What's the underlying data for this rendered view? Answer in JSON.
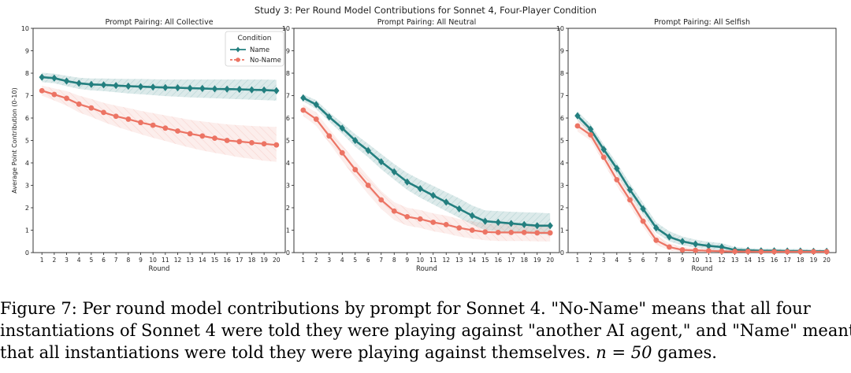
{
  "figure_title": "Study 3: Per Round Model Contributions for Sonnet 4, Four-Player Condition",
  "legend": {
    "title": "Condition",
    "entries": [
      {
        "label": "Name",
        "color": "#237f7f",
        "marker": "diamond"
      },
      {
        "label": "No-Name",
        "color": "#ec7464",
        "marker": "circle",
        "dashed": true
      }
    ]
  },
  "chart_data": [
    {
      "type": "line",
      "title": "Prompt Pairing: All Collective",
      "xlabel": "Round",
      "ylabel": "Average Point Contribution (0-10)",
      "x": [
        1,
        2,
        3,
        4,
        5,
        6,
        7,
        8,
        9,
        10,
        11,
        12,
        13,
        14,
        15,
        16,
        17,
        18,
        19,
        20
      ],
      "xticks": [
        "1",
        "2",
        "3",
        "4",
        "5",
        "6",
        "7",
        "8",
        "9",
        "10",
        "11",
        "12",
        "13",
        "14",
        "15",
        "16",
        "17",
        "18",
        "19",
        "20"
      ],
      "ylim": [
        0,
        10
      ],
      "yticks": [
        "0",
        "1",
        "2",
        "3",
        "4",
        "5",
        "6",
        "7",
        "8",
        "9",
        "10"
      ],
      "legend_position": "top-right",
      "series": [
        {
          "name": "Name",
          "values": [
            7.82,
            7.78,
            7.65,
            7.55,
            7.5,
            7.48,
            7.45,
            7.42,
            7.4,
            7.38,
            7.36,
            7.35,
            7.33,
            7.32,
            7.3,
            7.29,
            7.28,
            7.26,
            7.25,
            7.22
          ],
          "ci_low": [
            7.6,
            7.55,
            7.42,
            7.3,
            7.24,
            7.2,
            7.15,
            7.1,
            7.06,
            7.02,
            6.98,
            6.95,
            6.92,
            6.9,
            6.88,
            6.86,
            6.84,
            6.82,
            6.8,
            6.78
          ],
          "ci_high": [
            8.02,
            7.98,
            7.88,
            7.8,
            7.76,
            7.76,
            7.75,
            7.74,
            7.74,
            7.73,
            7.72,
            7.72,
            7.72,
            7.72,
            7.72,
            7.72,
            7.72,
            7.72,
            7.72,
            7.7
          ]
        },
        {
          "name": "No-Name",
          "values": [
            7.22,
            7.05,
            6.88,
            6.62,
            6.45,
            6.25,
            6.08,
            5.95,
            5.8,
            5.68,
            5.55,
            5.42,
            5.3,
            5.2,
            5.1,
            5.0,
            4.95,
            4.9,
            4.85,
            4.8
          ],
          "ci_low": [
            7.0,
            6.78,
            6.55,
            6.25,
            6.05,
            5.82,
            5.62,
            5.45,
            5.28,
            5.12,
            4.98,
            4.82,
            4.68,
            4.55,
            4.45,
            4.35,
            4.25,
            4.18,
            4.1,
            4.05
          ],
          "ci_high": [
            7.45,
            7.32,
            7.2,
            7.0,
            6.85,
            6.68,
            6.55,
            6.45,
            6.32,
            6.22,
            6.12,
            6.02,
            5.92,
            5.85,
            5.78,
            5.72,
            5.68,
            5.65,
            5.62,
            5.6
          ]
        }
      ]
    },
    {
      "type": "line",
      "title": "Prompt Pairing: All Neutral",
      "xlabel": "Round",
      "x": [
        1,
        2,
        3,
        4,
        5,
        6,
        7,
        8,
        9,
        10,
        11,
        12,
        13,
        14,
        15,
        16,
        17,
        18,
        19,
        20
      ],
      "xticks": [
        "1",
        "2",
        "3",
        "4",
        "5",
        "6",
        "7",
        "8",
        "9",
        "10",
        "11",
        "12",
        "13",
        "14",
        "15",
        "16",
        "17",
        "18",
        "19",
        "20"
      ],
      "ylim": [
        0,
        10
      ],
      "yticks": [
        "0",
        "1",
        "2",
        "3",
        "4",
        "5",
        "6",
        "7",
        "8",
        "9",
        "10"
      ],
      "series": [
        {
          "name": "Name",
          "values": [
            6.9,
            6.6,
            6.05,
            5.55,
            5.0,
            4.55,
            4.05,
            3.6,
            3.15,
            2.85,
            2.55,
            2.25,
            1.95,
            1.65,
            1.4,
            1.35,
            1.3,
            1.25,
            1.2,
            1.2
          ],
          "ci_low": [
            6.75,
            6.4,
            5.85,
            5.3,
            4.72,
            4.25,
            3.72,
            3.25,
            2.8,
            2.45,
            2.15,
            1.85,
            1.55,
            1.25,
            1.0,
            0.95,
            0.9,
            0.85,
            0.82,
            0.8
          ],
          "ci_high": [
            7.05,
            6.8,
            6.25,
            5.78,
            5.28,
            4.85,
            4.4,
            3.95,
            3.55,
            3.25,
            2.98,
            2.7,
            2.42,
            2.1,
            1.88,
            1.85,
            1.82,
            1.8,
            1.78,
            1.75
          ]
        },
        {
          "name": "No-Name",
          "values": [
            6.35,
            5.95,
            5.2,
            4.45,
            3.7,
            3.0,
            2.35,
            1.85,
            1.6,
            1.5,
            1.35,
            1.25,
            1.1,
            1.0,
            0.92,
            0.9,
            0.9,
            0.9,
            0.88,
            0.88
          ],
          "ci_low": [
            6.1,
            5.65,
            4.88,
            4.1,
            3.32,
            2.6,
            1.95,
            1.45,
            1.2,
            1.1,
            0.95,
            0.85,
            0.72,
            0.62,
            0.55,
            0.52,
            0.52,
            0.52,
            0.5,
            0.5
          ],
          "ci_high": [
            6.6,
            6.25,
            5.52,
            4.8,
            4.08,
            3.4,
            2.75,
            2.25,
            2.0,
            1.9,
            1.75,
            1.65,
            1.5,
            1.4,
            1.3,
            1.28,
            1.28,
            1.28,
            1.26,
            1.26
          ]
        }
      ]
    },
    {
      "type": "line",
      "title": "Prompt Pairing: All Selfish",
      "xlabel": "Round",
      "x": [
        1,
        2,
        3,
        4,
        5,
        6,
        7,
        8,
        9,
        10,
        11,
        12,
        13,
        14,
        15,
        16,
        17,
        18,
        19,
        20
      ],
      "xticks": [
        "1",
        "2",
        "3",
        "4",
        "5",
        "6",
        "7",
        "8",
        "9",
        "10",
        "11",
        "12",
        "13",
        "14",
        "15",
        "16",
        "17",
        "18",
        "19",
        "20"
      ],
      "ylim": [
        0,
        10
      ],
      "yticks": [
        "0",
        "1",
        "2",
        "3",
        "4",
        "5",
        "6",
        "7",
        "8",
        "9",
        "10"
      ],
      "series": [
        {
          "name": "Name",
          "values": [
            6.1,
            5.5,
            4.6,
            3.75,
            2.8,
            1.95,
            1.1,
            0.7,
            0.5,
            0.38,
            0.3,
            0.25,
            0.12,
            0.1,
            0.08,
            0.08,
            0.07,
            0.07,
            0.06,
            0.06
          ],
          "ci_low": [
            5.9,
            5.3,
            4.38,
            3.5,
            2.55,
            1.7,
            0.88,
            0.5,
            0.32,
            0.22,
            0.15,
            0.1,
            0.03,
            0.02,
            0.01,
            0.01,
            0.0,
            0.0,
            0.0,
            0.0
          ],
          "ci_high": [
            6.3,
            5.72,
            4.82,
            4.0,
            3.08,
            2.22,
            1.35,
            0.95,
            0.72,
            0.58,
            0.48,
            0.42,
            0.25,
            0.2,
            0.18,
            0.18,
            0.16,
            0.16,
            0.15,
            0.15
          ]
        },
        {
          "name": "No-Name",
          "values": [
            5.65,
            5.25,
            4.25,
            3.25,
            2.35,
            1.4,
            0.55,
            0.25,
            0.12,
            0.1,
            0.08,
            0.06,
            0.05,
            0.05,
            0.04,
            0.04,
            0.04,
            0.04,
            0.04,
            0.04
          ],
          "ci_low": [
            5.4,
            5.0,
            4.0,
            2.98,
            2.08,
            1.15,
            0.35,
            0.1,
            0.02,
            0.0,
            0.0,
            0.0,
            0.0,
            0.0,
            0.0,
            0.0,
            0.0,
            0.0,
            0.0,
            0.0
          ],
          "ci_high": [
            5.9,
            5.5,
            4.5,
            3.52,
            2.62,
            1.65,
            0.78,
            0.42,
            0.25,
            0.2,
            0.16,
            0.13,
            0.11,
            0.1,
            0.09,
            0.09,
            0.09,
            0.09,
            0.09,
            0.09
          ]
        }
      ]
    }
  ],
  "caption": {
    "line1": "Figure 7: Per round model contributions by prompt for Sonnet 4. \"No-Name\" means that all four",
    "line2": "instantiations of Sonnet 4 were told they were playing against \"another AI agent,\" and \"Name\" meant",
    "line3_text": "that all instantiations were told they were playing against themselves.",
    "line3_math": "n = 50",
    "line3_end": "games."
  }
}
